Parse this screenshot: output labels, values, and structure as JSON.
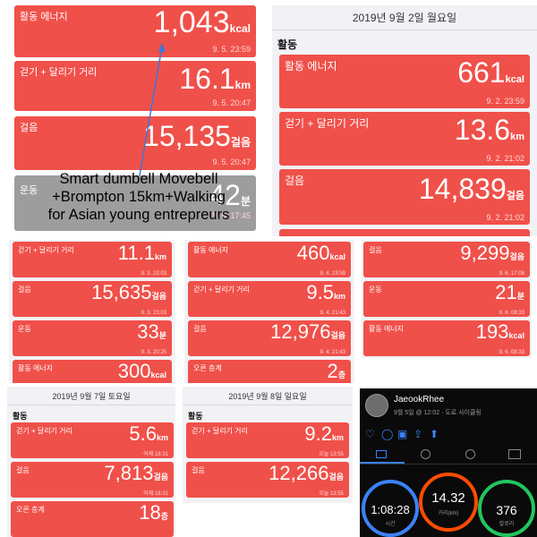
{
  "p1": {
    "c1": {
      "label": "활동 에너지",
      "value": "1,043",
      "unit": "kcal",
      "time": "9. 5. 23:59"
    },
    "c2": {
      "label": "걷기 + 달리기 거리",
      "value": "16.1",
      "unit": "km",
      "time": "9. 5. 20:47"
    },
    "c3": {
      "label": "걸음",
      "value": "15,135",
      "unit": "걸음",
      "time": "9. 5. 20:47"
    },
    "c4": {
      "label": "운동",
      "value": "42",
      "unit": "분",
      "time": "9. 5. 17:45"
    }
  },
  "overlay": {
    "line1": "Smart dumbell Movebell",
    "line2": "+Brompton 15km+Walking",
    "line3": "for Asian young entrepreurs"
  },
  "p2": {
    "date": "2019년 9월 2일 월요일",
    "section": "활동",
    "c1": {
      "label": "활동 에너지",
      "value": "661",
      "unit": "kcal",
      "time": "9. 2. 23:59"
    },
    "c2": {
      "label": "걷기 + 달리기 거리",
      "value": "13.6",
      "unit": "km",
      "time": "9. 2. 21:02"
    },
    "c3": {
      "label": "걸음",
      "value": "14,839",
      "unit": "걸음",
      "time": "9. 2. 21:02"
    }
  },
  "p3": {
    "c1": {
      "label": "걷기 + 달리기 거리",
      "value": "11.1",
      "unit": "km",
      "time": "9. 3. 23:03"
    },
    "c2": {
      "label": "걸음",
      "value": "15,635",
      "unit": "걸음",
      "time": "9. 3. 23:03"
    },
    "c3": {
      "label": "운동",
      "value": "33",
      "unit": "분",
      "time": "9. 3. 20:25"
    },
    "c4": {
      "label": "활동 에너지",
      "value": "300",
      "unit": "kcal",
      "time": ""
    }
  },
  "p4": {
    "c1": {
      "label": "활동 에너지",
      "value": "460",
      "unit": "kcal",
      "time": "9. 4. 23:59"
    },
    "c2": {
      "label": "걷기 + 달리기 거리",
      "value": "9.5",
      "unit": "km",
      "time": "9. 4. 21:43"
    },
    "c3": {
      "label": "걸음",
      "value": "12,976",
      "unit": "걸음",
      "time": "9. 4. 21:43"
    },
    "c4": {
      "label": "오른 층계",
      "value": "2",
      "unit": "층",
      "time": ""
    }
  },
  "p5": {
    "c1": {
      "label": "걸음",
      "value": "9,299",
      "unit": "걸음",
      "time": "9. 6. 17:08"
    },
    "c2": {
      "label": "운동",
      "value": "21",
      "unit": "분",
      "time": "9. 6. 08:33"
    },
    "c3": {
      "label": "활동 에너지",
      "value": "193",
      "unit": "kcal",
      "time": "9. 6. 08:33"
    }
  },
  "p6": {
    "date": "2019년 9월 7일 토요일",
    "section": "활동",
    "c1": {
      "label": "걷기 + 달리기 거리",
      "value": "5.6",
      "unit": "km",
      "time": "어제 18:31"
    },
    "c2": {
      "label": "걸음",
      "value": "7,813",
      "unit": "걸음",
      "time": "어제 18:31"
    },
    "c3": {
      "label": "오른 층계",
      "value": "18",
      "unit": "층",
      "time": ""
    }
  },
  "p7": {
    "date": "2019년 9월 8일 일요일",
    "section": "활동",
    "c1": {
      "label": "걷기 + 달리기 거리",
      "value": "9.2",
      "unit": "km",
      "time": "오늘 13:55"
    },
    "c2": {
      "label": "걸음",
      "value": "12,266",
      "unit": "걸음",
      "time": "오늘 13:55"
    }
  },
  "strava": {
    "name": "JaeookRhee",
    "meta": "9월 5일 @ 12:02 · 도로 사이클링",
    "time_value": "1:08:28",
    "time_label": "시간",
    "dist_value": "14.32",
    "dist_label": "거리(km)",
    "cal_value": "376",
    "cal_label": "칼로리",
    "accent": "#fc4c02"
  },
  "colors": {
    "card": "#f0504a"
  }
}
